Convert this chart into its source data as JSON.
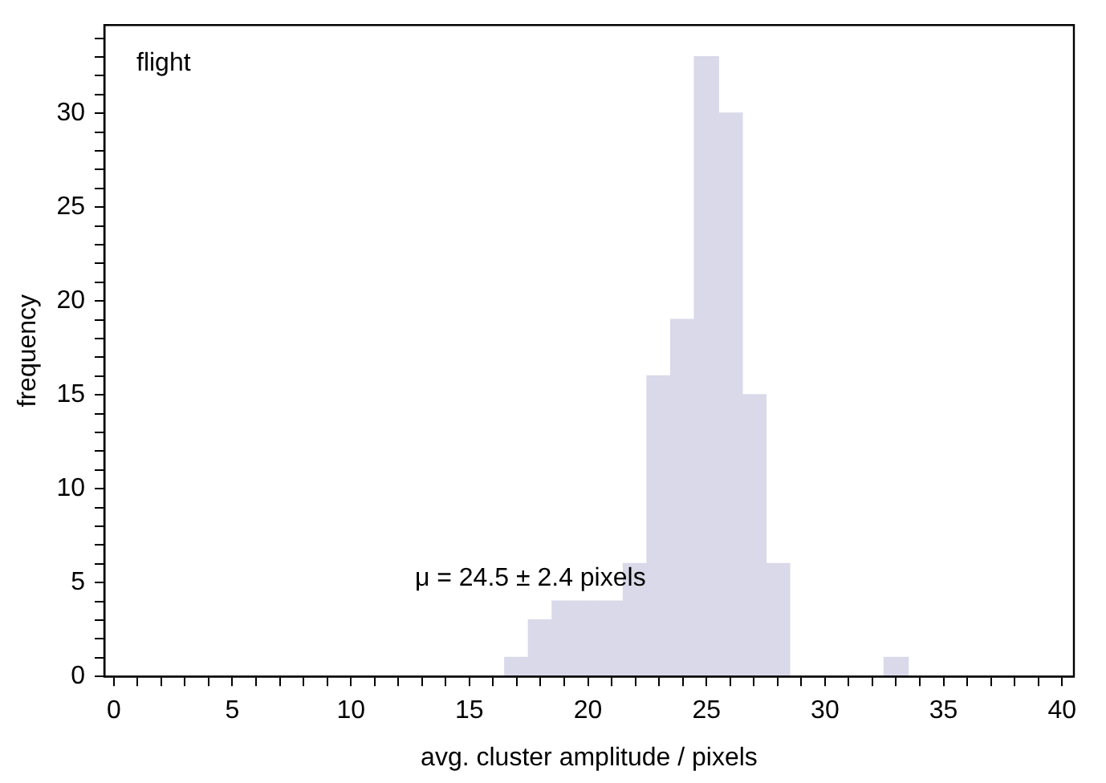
{
  "chart_data": {
    "type": "histogram",
    "xlabel": "avg. cluster amplitude / pixels",
    "ylabel": "frequency",
    "annotations": [
      "flight",
      "μ = 24.5 ± 2.4 pixels"
    ],
    "bins": [
      16.5,
      17.5,
      18.5,
      19.5,
      20.5,
      21.5,
      22.5,
      23.5,
      24.5,
      25.5,
      26.5,
      27.5,
      28.5,
      29.5,
      30.5,
      31.5,
      32.5,
      33.5
    ],
    "values": [
      1,
      3,
      4,
      4,
      4,
      6,
      16,
      19,
      33,
      30,
      15,
      6,
      0,
      0,
      0,
      0,
      1
    ],
    "color": "#d9d9ea",
    "xlim": [
      -0.4,
      40.5
    ],
    "xticks": [
      0,
      {
        "value": 1,
        "label": null
      },
      {
        "value": 2,
        "label": null
      },
      {
        "value": 3,
        "label": null
      },
      {
        "value": 4,
        "label": null
      },
      5,
      {
        "value": 6,
        "label": null
      },
      {
        "value": 7,
        "label": null
      },
      {
        "value": 8,
        "label": null
      },
      {
        "value": 9,
        "label": null
      },
      10,
      {
        "value": 11,
        "label": null
      },
      {
        "value": 12,
        "label": null
      },
      {
        "value": 13,
        "label": null
      },
      {
        "value": 14,
        "label": null
      },
      15,
      {
        "value": 16,
        "label": null
      },
      {
        "value": 17,
        "label": null
      },
      {
        "value": 18,
        "label": null
      },
      {
        "value": 19,
        "label": null
      },
      20,
      {
        "value": 21,
        "label": null
      },
      {
        "value": 22,
        "label": null
      },
      {
        "value": 23,
        "label": null
      },
      {
        "value": 24,
        "label": null
      },
      25,
      {
        "value": 26,
        "label": null
      },
      {
        "value": 27,
        "label": null
      },
      {
        "value": 28,
        "label": null
      },
      {
        "value": 29,
        "label": null
      },
      30,
      {
        "value": 31,
        "label": null
      },
      {
        "value": 32,
        "label": null
      },
      {
        "value": 33,
        "label": null
      },
      {
        "value": 34,
        "label": null
      },
      35,
      {
        "value": 36,
        "label": null
      },
      {
        "value": 37,
        "label": null
      },
      {
        "value": 38,
        "label": null
      },
      {
        "value": 39,
        "label": null
      },
      40
    ],
    "ylim": [
      0,
      34.7
    ],
    "yticks": [
      0,
      {
        "value": 1,
        "label": null
      },
      {
        "value": 2,
        "label": null
      },
      {
        "value": 3,
        "label": null
      },
      {
        "value": 4,
        "label": null
      },
      5,
      {
        "value": 6,
        "label": null
      },
      {
        "value": 7,
        "label": null
      },
      {
        "value": 8,
        "label": null
      },
      {
        "value": 9,
        "label": null
      },
      10,
      {
        "value": 11,
        "label": null
      },
      {
        "value": 12,
        "label": null
      },
      {
        "value": 13,
        "label": null
      },
      {
        "value": 14,
        "label": null
      },
      15,
      {
        "value": 16,
        "label": null
      },
      {
        "value": 17,
        "label": null
      },
      {
        "value": 18,
        "label": null
      },
      {
        "value": 19,
        "label": null
      },
      20,
      {
        "value": 21,
        "label": null
      },
      {
        "value": 22,
        "label": null
      },
      {
        "value": 23,
        "label": null
      },
      {
        "value": 24,
        "label": null
      },
      25,
      {
        "value": 26,
        "label": null
      },
      {
        "value": 27,
        "label": null
      },
      {
        "value": 28,
        "label": null
      },
      {
        "value": 29,
        "label": null
      },
      30,
      {
        "value": 31,
        "label": null
      },
      {
        "value": 32,
        "label": null
      },
      {
        "value": 33,
        "label": null
      },
      {
        "value": 34,
        "label": null
      }
    ],
    "grid": false,
    "legend": false
  }
}
